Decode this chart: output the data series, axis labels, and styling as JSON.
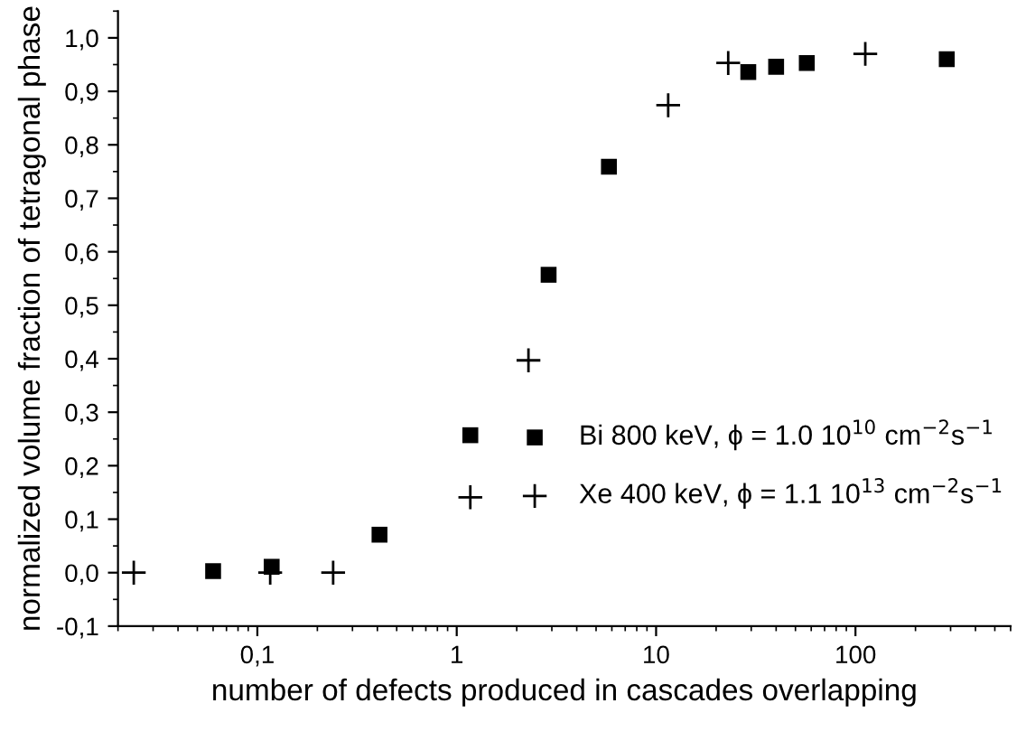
{
  "chart_data": {
    "type": "scatter",
    "xlabel": "number of defects produced in cascades overlapping",
    "ylabel": "normalized volume fraction of tetragonal phase",
    "log": "x",
    "xlim": [
      0.02,
      600
    ],
    "ylim": [
      -0.1,
      1.05
    ],
    "xticks": [
      {
        "value": 0.1,
        "label": "0,1"
      },
      1,
      10,
      100
    ],
    "yticks": [
      {
        "value": -0.1,
        "label": "-0,1"
      },
      {
        "value": 0.0,
        "label": "0,0"
      },
      {
        "value": 0.1,
        "label": "0,1"
      },
      {
        "value": 0.2,
        "label": "0,2"
      },
      {
        "value": 0.3,
        "label": "0,3"
      },
      {
        "value": 0.4,
        "label": "0,4"
      },
      {
        "value": 0.5,
        "label": "0,5"
      },
      {
        "value": 0.6,
        "label": "0,6"
      },
      {
        "value": 0.7,
        "label": "0,7"
      },
      {
        "value": 0.8,
        "label": "0,8"
      },
      {
        "value": 0.9,
        "label": "0,9"
      },
      {
        "value": 1.0,
        "label": "1,0"
      }
    ],
    "grid": false,
    "legend": "lower right",
    "series": [
      {
        "name": "Bi 800 keV, ϕ = 1.0 10$^{10}$ cm$^{−2}$s$^{−1}$",
        "color": "#000000",
        "marker": "square",
        "x": [
          0.06,
          0.118,
          0.41,
          1.17,
          2.89,
          5.8,
          29,
          40,
          57,
          287
        ],
        "values": [
          0.003,
          0.011,
          0.071,
          0.257,
          0.557,
          0.759,
          0.936,
          0.946,
          0.953,
          0.96
        ]
      },
      {
        "name": "Xe 400 keV, ϕ = 1.1 10$^{13}$ cm$^{−2}$s$^{−1}$",
        "color": "#000000",
        "marker": "cross",
        "x": [
          0.024,
          0.116,
          0.24,
          1.17,
          2.29,
          11.5,
          23,
          112
        ],
        "values": [
          0.0,
          0.0,
          0.0,
          0.141,
          0.397,
          0.874,
          0.953,
          0.97
        ]
      }
    ]
  }
}
